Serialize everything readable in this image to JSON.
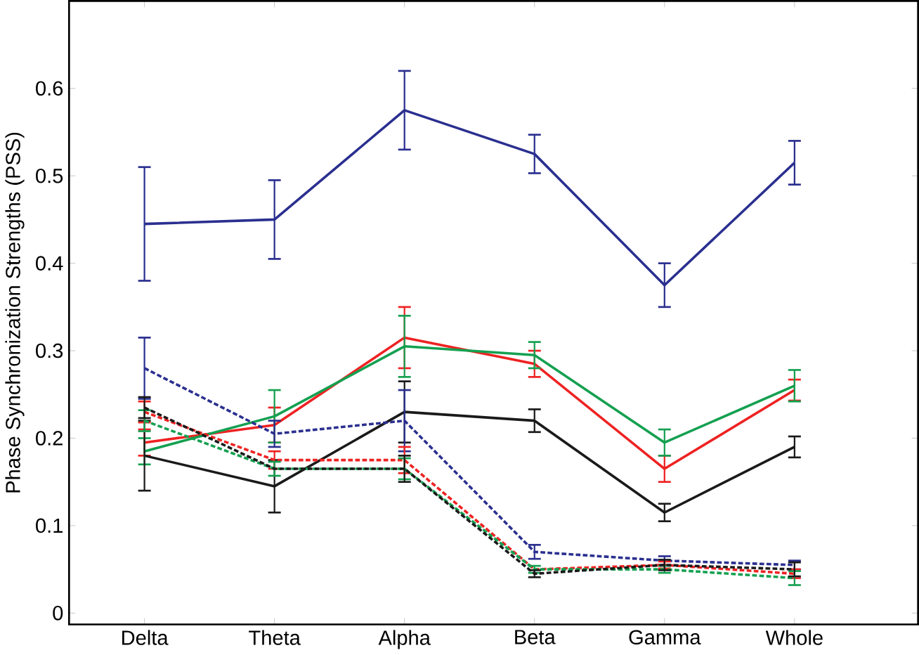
{
  "chart_data": {
    "type": "line",
    "ylabel": "Phase Synchronization Strengths (PSS)",
    "categories": [
      "Delta",
      "Theta",
      "Alpha",
      "Beta",
      "Gamma",
      "Whole"
    ],
    "ylim": [
      -0.013,
      0.7
    ],
    "yticks": [
      0,
      0.1,
      0.2,
      0.3,
      0.4,
      0.5,
      0.6
    ],
    "grid": false,
    "series": [
      {
        "color": "#2a2f8f",
        "line_style": "solid",
        "values": [
          0.445,
          0.45,
          0.575,
          0.525,
          0.375,
          0.515
        ],
        "errors": [
          0.065,
          0.045,
          0.045,
          0.022,
          0.025,
          0.025
        ]
      },
      {
        "color": "#ee2222",
        "line_style": "solid",
        "values": [
          0.195,
          0.215,
          0.315,
          0.285,
          0.165,
          0.255
        ],
        "errors": [
          0.015,
          0.02,
          0.035,
          0.015,
          0.015,
          0.012
        ]
      },
      {
        "color": "#14a050",
        "line_style": "solid",
        "values": [
          0.185,
          0.225,
          0.305,
          0.295,
          0.195,
          0.26
        ],
        "errors": [
          0.015,
          0.03,
          0.035,
          0.015,
          0.015,
          0.018
        ]
      },
      {
        "color": "#1a1a1a",
        "line_style": "solid",
        "values": [
          0.18,
          0.145,
          0.23,
          0.22,
          0.115,
          0.19
        ],
        "errors": [
          0.04,
          0.03,
          0.035,
          0.013,
          0.01,
          0.012
        ]
      },
      {
        "color": "#2a2f8f",
        "line_style": "dashed",
        "values": [
          0.28,
          0.205,
          0.22,
          0.07,
          0.06,
          0.055
        ],
        "errors": [
          0.035,
          0.015,
          0.035,
          0.008,
          0.005,
          0.005
        ]
      },
      {
        "color": "#ee2222",
        "line_style": "dashed",
        "values": [
          0.23,
          0.175,
          0.175,
          0.05,
          0.055,
          0.045
        ],
        "errors": [
          0.012,
          0.01,
          0.015,
          null,
          0.004,
          0.005
        ]
      },
      {
        "color": "#14a050",
        "line_style": "dashed",
        "values": [
          0.22,
          0.165,
          0.165,
          0.05,
          0.05,
          0.04
        ],
        "errors": [
          0.012,
          0.008,
          0.012,
          0.004,
          0.004,
          0.008
        ]
      },
      {
        "color": "#1a1a1a",
        "line_style": "dashed",
        "values": [
          0.235,
          0.165,
          0.165,
          0.045,
          0.055,
          0.05
        ],
        "errors": [
          0.012,
          null,
          0.015,
          0.004,
          0.006,
          0.008
        ]
      }
    ]
  }
}
